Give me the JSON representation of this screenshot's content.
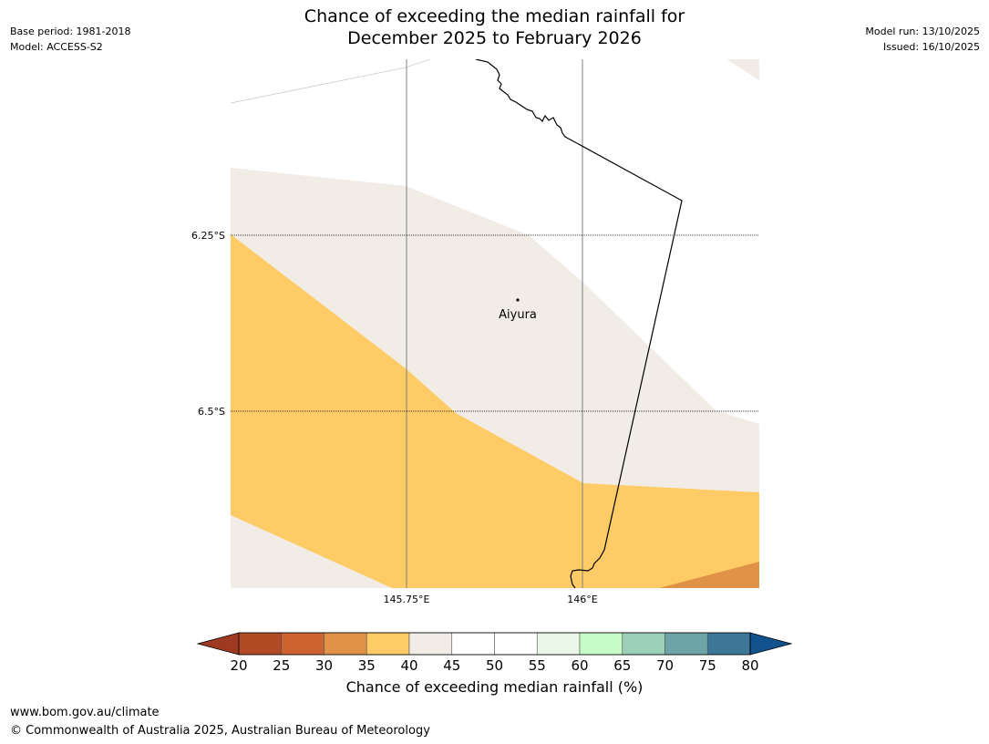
{
  "header": {
    "title_line1": "Chance of exceeding the median rainfall for",
    "title_line2": "December 2025 to February 2026",
    "base_period": "Base period: 1981-2018",
    "model": "Model: ACCESS-S2",
    "model_run": "Model run: 13/10/2025",
    "issued": "Issued: 16/10/2025"
  },
  "map": {
    "place_label": "Aiyura",
    "lat_labels": [
      "6.25°S",
      "6.5°S"
    ],
    "lon_labels": [
      "145.75°E",
      "146°E"
    ]
  },
  "colorbar": {
    "title": "Chance of exceeding median rainfall (%)",
    "ticks": [
      "20",
      "25",
      "30",
      "35",
      "40",
      "45",
      "50",
      "55",
      "60",
      "65",
      "70",
      "75",
      "80"
    ],
    "colors": {
      "lt20": "#9e3a22",
      "c20_25": "#b24a26",
      "c25_30": "#cc6330",
      "c30_35": "#e09247",
      "c35_40": "#fecb66",
      "c40_45": "#f2ece6",
      "c45_50": "#ffffff",
      "c50_55": "#ffffff",
      "c55_60": "#e9f6e8",
      "c60_65": "#c7fcc8",
      "c65_70": "#9ccfb7",
      "c70_75": "#6ca4a7",
      "c75_80": "#3d7798",
      "gt80": "#12528e"
    }
  },
  "footer": {
    "url": "www.bom.gov.au/climate",
    "copyright": "© Commonwealth of Australia 2025, Australian Bureau of Meteorology"
  }
}
